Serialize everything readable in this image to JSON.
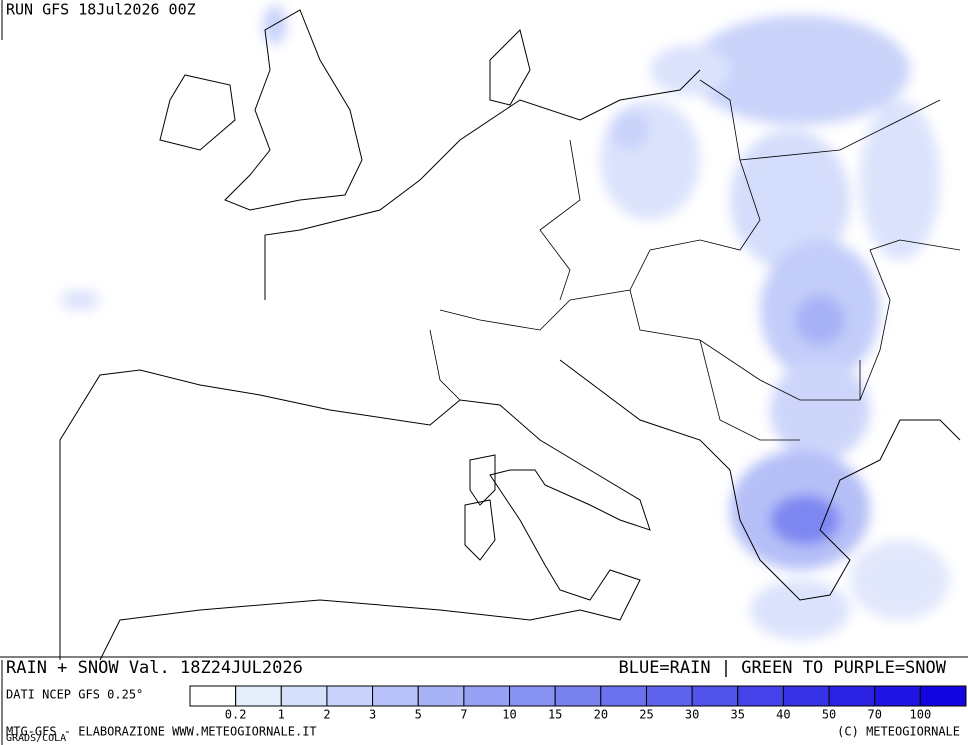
{
  "header": {
    "run": "RUN GFS 18Jul2026 00Z"
  },
  "footer": {
    "title": "RAIN + SNOW Val. 18Z24JUL2026",
    "legend_note": "BLUE=RAIN | GREEN TO PURPLE=SNOW",
    "source": "DATI NCEP GFS 0.25°",
    "credit_left": "MTG-GFS - ELABORAZIONE WWW.METEOGIORNALE.IT",
    "credit_right": "(C) METEOGIORNALE",
    "engine": "GRADS/COLA"
  },
  "scale": {
    "labels": [
      "0.2",
      "1",
      "2",
      "3",
      "5",
      "7",
      "10",
      "15",
      "20",
      "25",
      "30",
      "35",
      "40",
      "50",
      "70",
      "100"
    ],
    "colors": [
      "#ffffff",
      "#e6eefc",
      "#d6e0fb",
      "#c8d2fa",
      "#b8c2f8",
      "#a8b2f6",
      "#98a2f4",
      "#8892f2",
      "#7a82f0",
      "#6c72ee",
      "#5e62ec",
      "#5052ea",
      "#4442e8",
      "#3832e6",
      "#2c22e4",
      "#2014e2",
      "#1406e0"
    ]
  }
}
